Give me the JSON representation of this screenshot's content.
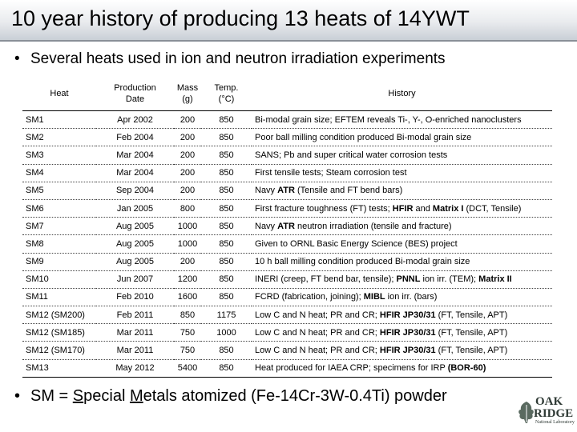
{
  "title": "10 year history of producing 13 heats of 14YWT",
  "bullet_top": "Several heats used in ion and neutron irradiation experiments",
  "bullet_bottom": {
    "s": "S",
    "pecial": "pecial ",
    "m": "M",
    "etals": "etals",
    "prefix": "SM = ",
    "suffix": " atomized (Fe-14Cr-3W-0.4Ti) powder"
  },
  "table": {
    "headers": {
      "heat": "Heat",
      "production_line1": "Production",
      "production_line2": "Date",
      "mass_line1": "Mass",
      "mass_line2": "(g)",
      "temp_line1": "Temp.",
      "temp_line2": "(°C)",
      "history": "History"
    },
    "rows": [
      {
        "heat": "SM1",
        "date": "Apr 2002",
        "mass": "200",
        "temp": "850",
        "history": [
          "Bi-modal grain size; EFTEM reveals Ti-, Y-, O-enriched nanoclusters"
        ]
      },
      {
        "heat": "SM2",
        "date": "Feb 2004",
        "mass": "200",
        "temp": "850",
        "history": [
          "Poor ball milling condition produced Bi-modal grain size"
        ]
      },
      {
        "heat": "SM3",
        "date": "Mar 2004",
        "mass": "200",
        "temp": "850",
        "history": [
          "SANS; Pb and super critical water corrosion tests"
        ]
      },
      {
        "heat": "SM4",
        "date": "Mar 2004",
        "mass": "200",
        "temp": "850",
        "history": [
          "First tensile tests; Steam corrosion test"
        ]
      },
      {
        "heat": "SM5",
        "date": "Sep 2004",
        "mass": "200",
        "temp": "850",
        "history": [
          "Navy ",
          "ATR",
          " (Tensile and FT bend bars)"
        ]
      },
      {
        "heat": "SM6",
        "date": "Jan 2005",
        "mass": "800",
        "temp": "850",
        "history": [
          "First fracture toughness (FT) tests; ",
          "HFIR",
          " and ",
          "Matrix I",
          " (DCT, Tensile)"
        ]
      },
      {
        "heat": "SM7",
        "date": "Aug 2005",
        "mass": "1000",
        "temp": "850",
        "history": [
          "Navy ",
          "ATR",
          " neutron irradiation (tensile and fracture)"
        ]
      },
      {
        "heat": "SM8",
        "date": "Aug 2005",
        "mass": "1000",
        "temp": "850",
        "history": [
          "Given to ORNL Basic Energy Science (BES) project"
        ]
      },
      {
        "heat": "SM9",
        "date": "Aug 2005",
        "mass": "200",
        "temp": "850",
        "history": [
          "10 h ball milling condition produced Bi-modal grain size"
        ]
      },
      {
        "heat": "SM10",
        "date": "Jun 2007",
        "mass": "1200",
        "temp": "850",
        "history": [
          "INERI (creep, FT bend bar, tensile); ",
          "PNNL",
          " ion irr. (TEM); ",
          "Matrix II"
        ]
      },
      {
        "heat": "SM11",
        "date": "Feb 2010",
        "mass": "1600",
        "temp": "850",
        "history": [
          "FCRD (fabrication, joining); ",
          "MIBL",
          " ion irr. (bars)"
        ]
      },
      {
        "heat": "SM12 (SM200)",
        "date": "Feb 2011",
        "mass": "850",
        "temp": "1175",
        "history": [
          "Low C and N heat; PR and CR; ",
          "HFIR JP30/31",
          " (FT, Tensile, APT)"
        ]
      },
      {
        "heat": "SM12 (SM185)",
        "date": "Mar 2011",
        "mass": "750",
        "temp": "1000",
        "history": [
          "Low C and N heat; PR and CR; ",
          "HFIR JP30/31",
          " (FT, Tensile, APT)"
        ]
      },
      {
        "heat": "SM12 (SM170)",
        "date": "Mar 2011",
        "mass": "750",
        "temp": "850",
        "history": [
          "Low C and N heat; PR and CR; ",
          "HFIR JP30/31",
          " (FT, Tensile, APT)"
        ]
      },
      {
        "heat": "SM13",
        "date": "May 2012",
        "mass": "5400",
        "temp": "850",
        "history": [
          "Heat produced for IAEA CRP; specimens for IRP ",
          "(BOR-60)"
        ]
      }
    ]
  },
  "logo": {
    "line1": "OAK",
    "line2": "RIDGE",
    "line3": "National Laboratory"
  },
  "colors": {
    "title_band_bottom": "#c9cfd6",
    "logo_green": "#2f3a35"
  }
}
